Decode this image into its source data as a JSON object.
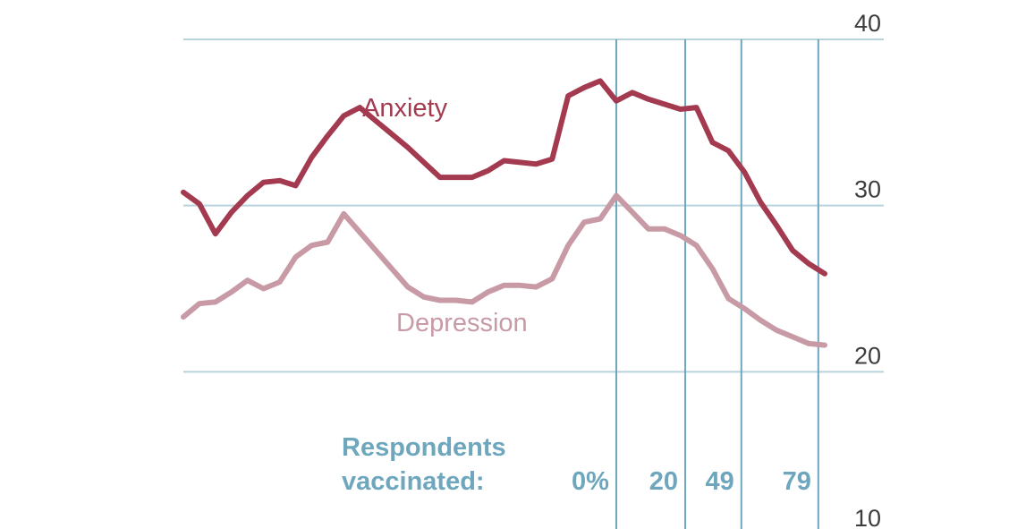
{
  "chart_data": {
    "type": "line",
    "yaxis": {
      "side": "right",
      "ticks": [
        40,
        30,
        20,
        10
      ],
      "ylim": [
        10,
        40
      ]
    },
    "grid": "horizontal",
    "x": [
      0,
      1,
      2,
      3,
      4,
      5,
      6,
      7,
      8,
      9,
      10,
      11,
      12,
      13,
      14,
      15,
      16,
      17,
      18,
      19,
      20,
      21,
      22,
      23,
      24,
      25,
      26,
      27,
      28,
      29,
      30,
      31,
      32,
      33,
      34,
      35,
      36,
      37,
      38,
      39,
      40
    ],
    "series": [
      {
        "name": "Anxiety",
        "color": "#a33a4f",
        "values": [
          30.8,
          30.1,
          28.3,
          29.6,
          30.6,
          31.4,
          31.5,
          31.2,
          32.9,
          34.2,
          35.4,
          35.9,
          35.1,
          34.3,
          33.5,
          32.6,
          31.7,
          31.7,
          31.7,
          32.1,
          32.7,
          32.6,
          32.5,
          32.8,
          36.6,
          37.1,
          37.5,
          36.3,
          36.8,
          36.4,
          36.1,
          35.8,
          35.9,
          33.8,
          33.3,
          32.0,
          30.2,
          28.8,
          27.3,
          26.5,
          25.9
        ]
      },
      {
        "name": "Depression",
        "color": "#c79aa6",
        "values": [
          23.3,
          24.1,
          24.2,
          24.8,
          25.5,
          25.0,
          25.4,
          26.9,
          27.6,
          27.8,
          29.5,
          28.4,
          27.3,
          26.2,
          25.1,
          24.5,
          24.3,
          24.3,
          24.2,
          24.8,
          25.2,
          25.2,
          25.1,
          25.6,
          27.6,
          29.0,
          29.2,
          30.6,
          29.6,
          28.6,
          28.6,
          28.2,
          27.6,
          26.2,
          24.4,
          23.8,
          23.1,
          22.5,
          22.1,
          21.7,
          21.6
        ]
      }
    ],
    "vaccination": {
      "title_line1": "Respondents",
      "title_line2": "vaccinated:",
      "color": "#6ea7bd",
      "markers": [
        {
          "x": 27,
          "label": "0%"
        },
        {
          "x": 31.3,
          "label": "20"
        },
        {
          "x": 34.8,
          "label": "49"
        },
        {
          "x": 39.6,
          "label": "79"
        }
      ]
    }
  }
}
